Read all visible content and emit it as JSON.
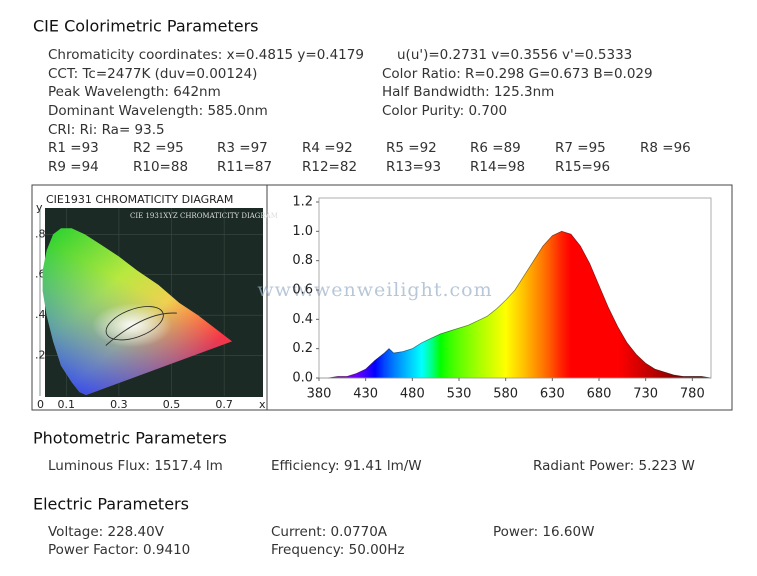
{
  "colorimetric": {
    "title": "CIE Colorimetric Parameters",
    "chromaticity": "Chromaticity coordinates: x=0.4815 y=0.4179",
    "uv": "u(u')=0.2731 v=0.3556 v'=0.5333",
    "cct": "CCT: Tc=2477K (duv=0.00124)",
    "color_ratio": "Color Ratio: R=0.298  G=0.673  B=0.029",
    "peak_wavelength": "Peak Wavelength: 642nm",
    "half_bandwidth": "Half Bandwidth: 125.3nm",
    "dominant_wavelength": "Dominant Wavelength: 585.0nm",
    "color_purity": "Color Purity: 0.700",
    "cri": "CRI: Ri: Ra= 93.5",
    "r_values": [
      "R1 =93",
      "R2 =95",
      "R3 =97",
      "R4 =92",
      "R5 =92",
      "R6 =89",
      "R7 =95",
      "R8 =96",
      "R9 =94",
      "R10=88",
      "R11=87",
      "R12=82",
      "R13=93",
      "R14=98",
      "R15=96"
    ]
  },
  "cie_diagram": {
    "title": "CIE1931 CHROMATICITY DIAGRAM",
    "inner_title": "CIE 1931XYZ CHROMATICITY DIAGRAM",
    "x_label": "x",
    "y_label": "y",
    "xlim": [
      0,
      0.84
    ],
    "ylim": [
      0,
      0.93
    ],
    "xticks": [
      {
        "value": 0,
        "label": "0"
      },
      0.1,
      0.3,
      0.5,
      0.7
    ],
    "yticks": [
      {
        "value": 0.2,
        "label": ".2"
      },
      {
        "value": 0.4,
        "label": ".4"
      },
      {
        "value": 0.6,
        "label": ".6"
      },
      {
        "value": 0.8,
        "label": ".8"
      }
    ]
  },
  "chart_data": {
    "type": "area",
    "watermark": "www.wenweilight.com",
    "x": [
      380,
      390,
      400,
      410,
      420,
      430,
      440,
      450,
      455,
      460,
      470,
      480,
      490,
      500,
      510,
      520,
      530,
      540,
      550,
      560,
      570,
      580,
      590,
      600,
      610,
      620,
      630,
      640,
      650,
      660,
      670,
      680,
      690,
      700,
      710,
      720,
      730,
      740,
      750,
      760,
      770,
      780,
      790,
      800
    ],
    "values": [
      0,
      0,
      0.01,
      0.01,
      0.03,
      0.06,
      0.12,
      0.17,
      0.2,
      0.17,
      0.18,
      0.2,
      0.24,
      0.27,
      0.3,
      0.32,
      0.34,
      0.36,
      0.39,
      0.42,
      0.47,
      0.53,
      0.6,
      0.7,
      0.8,
      0.9,
      0.97,
      1.0,
      0.98,
      0.9,
      0.78,
      0.63,
      0.48,
      0.35,
      0.24,
      0.16,
      0.1,
      0.06,
      0.04,
      0.02,
      0.01,
      0.01,
      0.01,
      0
    ],
    "xlim": [
      380,
      800
    ],
    "ylim": [
      0,
      1.2
    ],
    "xticks": [
      380,
      430,
      480,
      530,
      580,
      630,
      680,
      730,
      780
    ],
    "yticks": [
      {
        "value": 0,
        "label": "0.0"
      },
      0.2,
      0.4,
      0.6,
      0.8,
      {
        "value": 1,
        "label": "1.0"
      },
      1.2
    ],
    "line_color": "#222222"
  },
  "photometric": {
    "title": "Photometric Parameters",
    "luminous_flux": "Luminous Flux: 1517.4 lm",
    "efficiency": "Efficiency: 91.41 lm/W",
    "radiant_power": "Radiant Power: 5.223 W"
  },
  "electric": {
    "title": "Electric Parameters",
    "voltage": "Voltage: 228.40V",
    "current": "Current: 0.0770A",
    "power": "Power: 16.60W",
    "power_factor": "Power Factor: 0.9410",
    "frequency": "Frequency: 50.00Hz"
  }
}
